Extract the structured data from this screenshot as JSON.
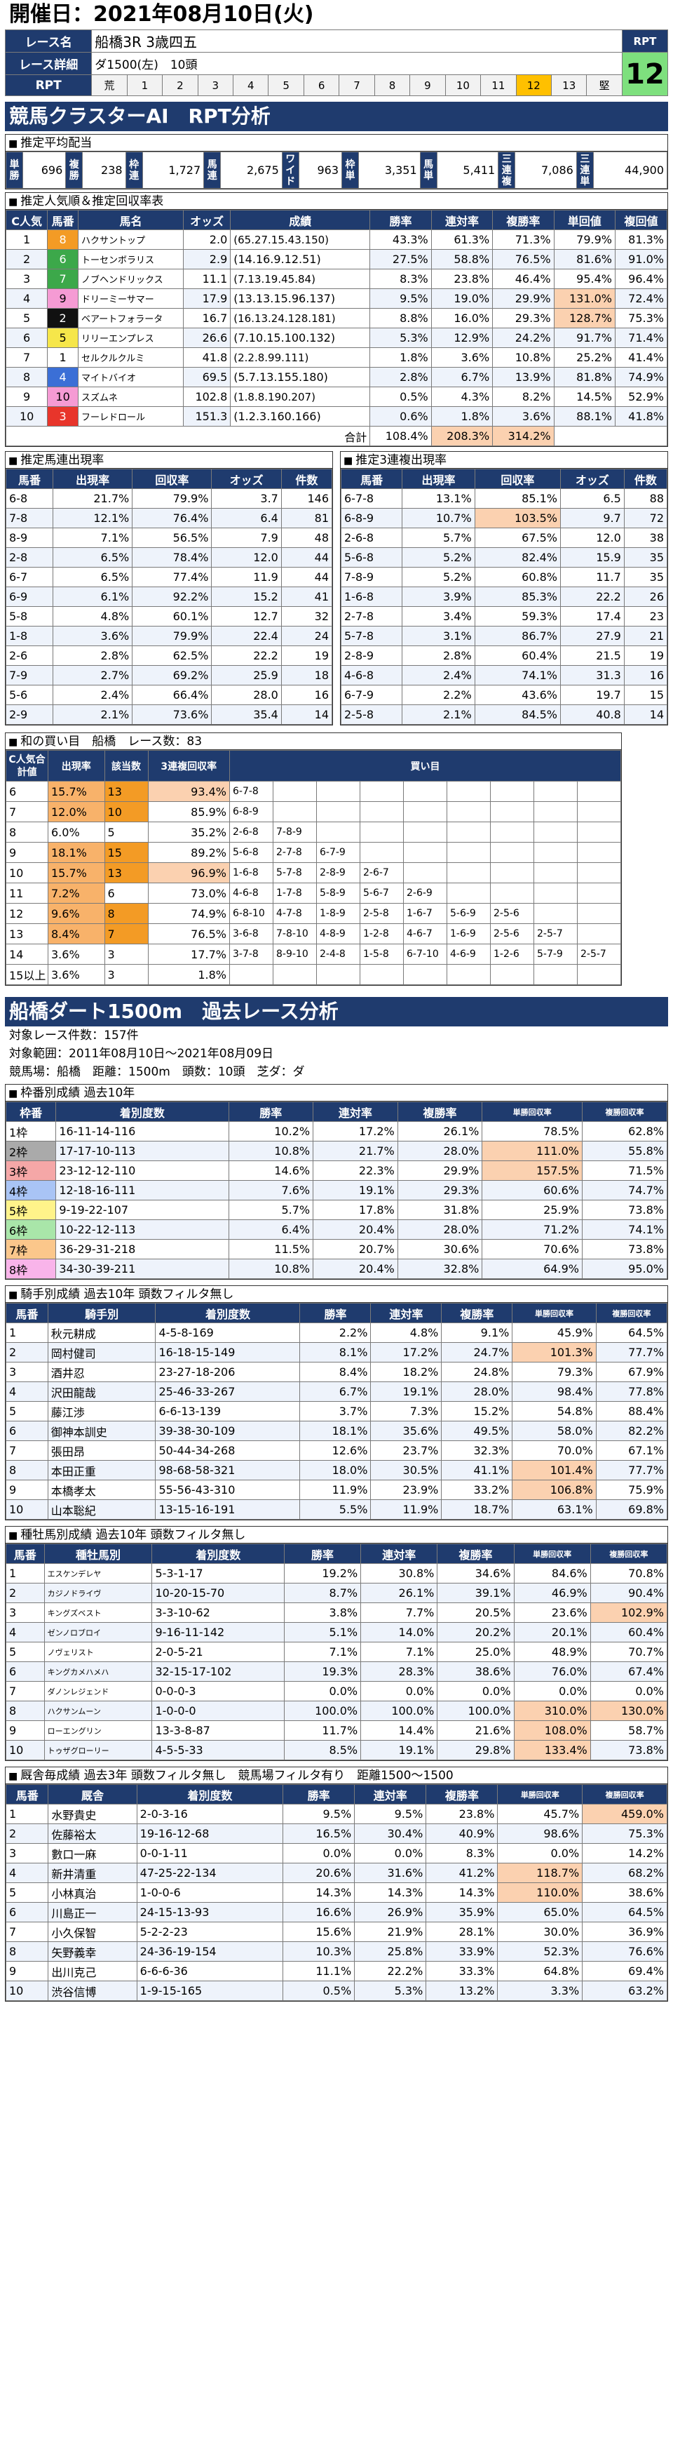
{
  "date": "開催日：2021年08月10日(火)",
  "race": {
    "name_label": "レース名",
    "name": "船橋3R 3歳四五",
    "detail_label": "レース詳細",
    "detail": "ダ1500(左)　10頭",
    "rpt_label": "RPT",
    "rpt_head": "RPT",
    "rpt_value": "12",
    "rpt_cells": [
      "荒",
      "1",
      "2",
      "3",
      "4",
      "5",
      "6",
      "7",
      "8",
      "9",
      "10",
      "11",
      "12",
      "13",
      "堅"
    ],
    "rpt_selected": 12
  },
  "banner1": "競馬クラスターAI　RPT分析",
  "haito": {
    "title": "推定平均配当",
    "items": [
      [
        "単勝",
        "696"
      ],
      [
        "複勝",
        "238"
      ],
      [
        "枠連",
        "1,727"
      ],
      [
        "馬連",
        "2,675"
      ],
      [
        "ワイド",
        "963"
      ],
      [
        "枠単",
        "3,351"
      ],
      [
        "馬単",
        "5,411"
      ],
      [
        "三連複",
        "7,086"
      ],
      [
        "三連単",
        "44,900"
      ]
    ]
  },
  "ninki": {
    "title": "推定人気順＆推定回収率表",
    "headers": [
      "C人気",
      "馬番",
      "馬名",
      "オッズ",
      "成績",
      "勝率",
      "連対率",
      "複勝率",
      "単回値",
      "複回値"
    ],
    "rows": [
      [
        "1",
        "8",
        "ハクサントップ",
        "2.0",
        "(65.27.15.43.150)",
        "43.3%",
        "61.3%",
        "71.3%",
        "79.9%",
        "81.3%"
      ],
      [
        "2",
        "6",
        "トーセンボラリス",
        "2.9",
        "(14.16.9.12.51)",
        "27.5%",
        "58.8%",
        "76.5%",
        "81.6%",
        "91.0%"
      ],
      [
        "3",
        "7",
        "ノブヘンドリックス",
        "11.1",
        "(7.13.19.45.84)",
        "8.3%",
        "23.8%",
        "46.4%",
        "95.4%",
        "96.4%"
      ],
      [
        "4",
        "9",
        "ドリーミーサマー",
        "17.9",
        "(13.13.15.96.137)",
        "9.5%",
        "19.0%",
        "29.9%",
        "131.0%",
        "72.4%"
      ],
      [
        "5",
        "2",
        "ベアートフォラータ",
        "16.7",
        "(16.13.24.128.181)",
        "8.8%",
        "16.0%",
        "29.3%",
        "128.7%",
        "75.3%"
      ],
      [
        "6",
        "5",
        "リリーエンプレス",
        "26.6",
        "(7.10.15.100.132)",
        "5.3%",
        "12.9%",
        "24.2%",
        "91.7%",
        "71.4%"
      ],
      [
        "7",
        "1",
        "セルクルクルミ",
        "41.8",
        "(2.2.8.99.111)",
        "1.8%",
        "3.6%",
        "10.8%",
        "25.2%",
        "41.4%"
      ],
      [
        "8",
        "4",
        "マイトバイオ",
        "69.5",
        "(5.7.13.155.180)",
        "2.8%",
        "6.7%",
        "13.9%",
        "81.8%",
        "74.9%"
      ],
      [
        "9",
        "10",
        "スズムネ",
        "102.8",
        "(1.8.8.190.207)",
        "0.5%",
        "4.3%",
        "8.2%",
        "14.5%",
        "52.9%"
      ],
      [
        "10",
        "3",
        "フーレドロール",
        "151.3",
        "(1.2.3.160.166)",
        "0.6%",
        "1.8%",
        "3.6%",
        "88.1%",
        "41.8%"
      ]
    ],
    "total": [
      "合計",
      "108.4%",
      "208.3%",
      "314.2%"
    ]
  },
  "umaban": {
    "title": "推定馬連出現率",
    "headers": [
      "馬番",
      "出現率",
      "回収率",
      "オッズ",
      "件数"
    ],
    "rows": [
      [
        "6-8",
        "21.7%",
        "79.9%",
        "3.7",
        "146"
      ],
      [
        "7-8",
        "12.1%",
        "76.4%",
        "6.4",
        "81"
      ],
      [
        "8-9",
        "7.1%",
        "56.5%",
        "7.9",
        "48"
      ],
      [
        "2-8",
        "6.5%",
        "78.4%",
        "12.0",
        "44"
      ],
      [
        "6-7",
        "6.5%",
        "77.4%",
        "11.9",
        "44"
      ],
      [
        "6-9",
        "6.1%",
        "92.2%",
        "15.2",
        "41"
      ],
      [
        "5-8",
        "4.8%",
        "60.1%",
        "12.7",
        "32"
      ],
      [
        "1-8",
        "3.6%",
        "79.9%",
        "22.4",
        "24"
      ],
      [
        "2-6",
        "2.8%",
        "62.5%",
        "22.2",
        "19"
      ],
      [
        "7-9",
        "2.7%",
        "69.2%",
        "25.9",
        "18"
      ],
      [
        "5-6",
        "2.4%",
        "66.4%",
        "28.0",
        "16"
      ],
      [
        "2-9",
        "2.1%",
        "73.6%",
        "35.4",
        "14"
      ]
    ]
  },
  "sanren": {
    "title": "推定3連複出現率",
    "headers": [
      "馬番",
      "出現率",
      "回収率",
      "オッズ",
      "件数"
    ],
    "rows": [
      [
        "6-7-8",
        "13.1%",
        "85.1%",
        "6.5",
        "88"
      ],
      [
        "6-8-9",
        "10.7%",
        "103.5%",
        "9.7",
        "72"
      ],
      [
        "2-6-8",
        "5.7%",
        "67.5%",
        "12.0",
        "38"
      ],
      [
        "5-6-8",
        "5.2%",
        "82.4%",
        "15.9",
        "35"
      ],
      [
        "7-8-9",
        "5.2%",
        "60.8%",
        "11.7",
        "35"
      ],
      [
        "1-6-8",
        "3.9%",
        "85.3%",
        "22.2",
        "26"
      ],
      [
        "2-7-8",
        "3.4%",
        "59.3%",
        "17.4",
        "23"
      ],
      [
        "5-7-8",
        "3.1%",
        "86.7%",
        "27.9",
        "21"
      ],
      [
        "2-8-9",
        "2.8%",
        "60.4%",
        "21.5",
        "19"
      ],
      [
        "4-6-8",
        "2.4%",
        "74.1%",
        "31.3",
        "16"
      ],
      [
        "6-7-9",
        "2.2%",
        "43.6%",
        "19.7",
        "15"
      ],
      [
        "2-5-8",
        "2.1%",
        "84.5%",
        "40.8",
        "14"
      ]
    ]
  },
  "wa": {
    "title": "和の買い目　船橋　レース数：83",
    "headers": [
      "C人気合計値",
      "出現率",
      "該当数",
      "3連複回収率",
      "買い目"
    ],
    "rows": [
      [
        "6",
        "15.7%",
        "13",
        "93.4%",
        [
          "6-7-8"
        ]
      ],
      [
        "7",
        "12.0%",
        "10",
        "85.9%",
        [
          "6-8-9"
        ]
      ],
      [
        "8",
        "6.0%",
        "5",
        "35.2%",
        [
          "2-6-8",
          "7-8-9"
        ]
      ],
      [
        "9",
        "18.1%",
        "15",
        "89.2%",
        [
          "5-6-8",
          "2-7-8",
          "6-7-9"
        ]
      ],
      [
        "10",
        "15.7%",
        "13",
        "96.9%",
        [
          "1-6-8",
          "5-7-8",
          "2-8-9",
          "2-6-7"
        ]
      ],
      [
        "11",
        "7.2%",
        "6",
        "73.0%",
        [
          "4-6-8",
          "1-7-8",
          "5-8-9",
          "5-6-7",
          "2-6-9"
        ]
      ],
      [
        "12",
        "9.6%",
        "8",
        "74.9%",
        [
          "6-8-10",
          "4-7-8",
          "1-8-9",
          "2-5-8",
          "1-6-7",
          "5-6-9",
          "2-5-6"
        ]
      ],
      [
        "13",
        "8.4%",
        "7",
        "76.5%",
        [
          "3-6-8",
          "7-8-10",
          "4-8-9",
          "1-2-8",
          "4-6-7",
          "1-6-9",
          "2-5-6",
          "2-5-7"
        ]
      ],
      [
        "14",
        "3.6%",
        "3",
        "17.7%",
        [
          "3-7-8",
          "8-9-10",
          "2-4-8",
          "1-5-8",
          "6-7-10",
          "4-6-9",
          "1-2-6",
          "5-7-9",
          "2-5-7"
        ]
      ],
      [
        "15以上",
        "3.6%",
        "3",
        "1.8%",
        []
      ]
    ]
  },
  "banner2": "船橋ダート1500m　過去レース分析",
  "meta": {
    "line1": "対象レース件数：157件",
    "line2": "対象範囲：2011年08月10日～2021年08月09日",
    "line3": "競馬場：船橋　距離：1500m　頭数：10頭　芝ダ：ダ"
  },
  "waku": {
    "title": "枠番別成績 過去10年",
    "headers": [
      "枠番",
      "着別度数",
      "勝率",
      "連対率",
      "複勝率",
      "単勝回収率",
      "複勝回収率"
    ],
    "rows": [
      [
        "1枠",
        "16-11-14-116",
        "10.2%",
        "17.2%",
        "26.1%",
        "78.5%",
        "62.8%"
      ],
      [
        "2枠",
        "17-17-10-113",
        "10.8%",
        "21.7%",
        "28.0%",
        "111.0%",
        "55.8%"
      ],
      [
        "3枠",
        "23-12-12-110",
        "14.6%",
        "22.3%",
        "29.9%",
        "157.5%",
        "71.5%"
      ],
      [
        "4枠",
        "12-18-16-111",
        "7.6%",
        "19.1%",
        "29.3%",
        "60.6%",
        "74.7%"
      ],
      [
        "5枠",
        "9-19-22-107",
        "5.7%",
        "17.8%",
        "31.8%",
        "25.9%",
        "73.8%"
      ],
      [
        "6枠",
        "10-22-12-113",
        "6.4%",
        "20.4%",
        "28.0%",
        "71.2%",
        "74.1%"
      ],
      [
        "7枠",
        "36-29-31-218",
        "11.5%",
        "20.7%",
        "30.6%",
        "70.6%",
        "73.8%"
      ],
      [
        "8枠",
        "34-30-39-211",
        "10.8%",
        "20.4%",
        "32.8%",
        "64.9%",
        "95.0%"
      ]
    ]
  },
  "kishu": {
    "title": "騎手別成績 過去10年 頭数フィルタ無し",
    "headers": [
      "馬番",
      "騎手別",
      "着別度数",
      "勝率",
      "連対率",
      "複勝率",
      "単勝回収率",
      "複勝回収率"
    ],
    "rows": [
      [
        "1",
        "秋元耕成",
        "4-5-8-169",
        "2.2%",
        "4.8%",
        "9.1%",
        "45.9%",
        "64.5%"
      ],
      [
        "2",
        "岡村健司",
        "16-18-15-149",
        "8.1%",
        "17.2%",
        "24.7%",
        "101.3%",
        "77.7%"
      ],
      [
        "3",
        "酒井忍",
        "23-27-18-206",
        "8.4%",
        "18.2%",
        "24.8%",
        "79.3%",
        "67.9%"
      ],
      [
        "4",
        "沢田龍哉",
        "25-46-33-267",
        "6.7%",
        "19.1%",
        "28.0%",
        "98.4%",
        "77.8%"
      ],
      [
        "5",
        "藤江渉",
        "6-6-13-139",
        "3.7%",
        "7.3%",
        "15.2%",
        "54.8%",
        "88.4%"
      ],
      [
        "6",
        "御神本訓史",
        "39-38-30-109",
        "18.1%",
        "35.6%",
        "49.5%",
        "58.0%",
        "82.2%"
      ],
      [
        "7",
        "張田昂",
        "50-44-34-268",
        "12.6%",
        "23.7%",
        "32.3%",
        "70.0%",
        "67.1%"
      ],
      [
        "8",
        "本田正重",
        "98-68-58-321",
        "18.0%",
        "30.5%",
        "41.1%",
        "101.4%",
        "77.7%"
      ],
      [
        "9",
        "本橋孝太",
        "55-56-43-310",
        "11.9%",
        "23.9%",
        "33.2%",
        "106.8%",
        "75.9%"
      ],
      [
        "10",
        "山本聡紀",
        "13-15-16-191",
        "5.5%",
        "11.9%",
        "18.7%",
        "63.1%",
        "69.8%"
      ]
    ]
  },
  "shubo": {
    "title": "種牡馬別成績 過去10年 頭数フィルタ無し",
    "headers": [
      "馬番",
      "種牡馬別",
      "着別度数",
      "勝率",
      "連対率",
      "複勝率",
      "単勝回収率",
      "複勝回収率"
    ],
    "rows": [
      [
        "1",
        "エスケンデレヤ",
        "5-3-1-17",
        "19.2%",
        "30.8%",
        "34.6%",
        "84.6%",
        "70.8%"
      ],
      [
        "2",
        "カジノドライヴ",
        "10-20-15-70",
        "8.7%",
        "26.1%",
        "39.1%",
        "46.9%",
        "90.4%"
      ],
      [
        "3",
        "キングズベスト",
        "3-3-10-62",
        "3.8%",
        "7.7%",
        "20.5%",
        "23.6%",
        "102.9%"
      ],
      [
        "4",
        "ゼンノロブロイ",
        "9-16-11-142",
        "5.1%",
        "14.0%",
        "20.2%",
        "20.1%",
        "60.4%"
      ],
      [
        "5",
        "ノヴェリスト",
        "2-0-5-21",
        "7.1%",
        "7.1%",
        "25.0%",
        "48.9%",
        "70.7%"
      ],
      [
        "6",
        "キングカメハメハ",
        "32-15-17-102",
        "19.3%",
        "28.3%",
        "38.6%",
        "76.0%",
        "67.4%"
      ],
      [
        "7",
        "ダノンレジェンド",
        "0-0-0-3",
        "0.0%",
        "0.0%",
        "0.0%",
        "0.0%",
        "0.0%"
      ],
      [
        "8",
        "ハクサンムーン",
        "1-0-0-0",
        "100.0%",
        "100.0%",
        "100.0%",
        "310.0%",
        "130.0%"
      ],
      [
        "9",
        "ローエングリン",
        "13-3-8-87",
        "11.7%",
        "14.4%",
        "21.6%",
        "108.0%",
        "58.7%"
      ],
      [
        "10",
        "トゥザグローリー",
        "4-5-5-33",
        "8.5%",
        "19.1%",
        "29.8%",
        "133.4%",
        "73.8%"
      ]
    ]
  },
  "kyusha": {
    "title": "厩舎毎成績 過去3年 頭数フィルタ無し　競馬場フィルタ有り　距離1500～1500",
    "headers": [
      "馬番",
      "厩舎",
      "着別度数",
      "勝率",
      "連対率",
      "複勝率",
      "単勝回収率",
      "複勝回収率"
    ],
    "rows": [
      [
        "1",
        "水野貴史",
        "2-0-3-16",
        "9.5%",
        "9.5%",
        "23.8%",
        "45.7%",
        "459.0%"
      ],
      [
        "2",
        "佐藤裕太",
        "19-16-12-68",
        "16.5%",
        "30.4%",
        "40.9%",
        "98.6%",
        "75.3%"
      ],
      [
        "3",
        "數口一麻",
        "0-0-1-11",
        "0.0%",
        "0.0%",
        "8.3%",
        "0.0%",
        "14.2%"
      ],
      [
        "4",
        "新井清重",
        "47-25-22-134",
        "20.6%",
        "31.6%",
        "41.2%",
        "118.7%",
        "68.2%"
      ],
      [
        "5",
        "小林真治",
        "1-0-0-6",
        "14.3%",
        "14.3%",
        "14.3%",
        "110.0%",
        "38.6%"
      ],
      [
        "6",
        "川島正一",
        "24-15-13-93",
        "16.6%",
        "26.9%",
        "35.9%",
        "65.0%",
        "64.5%"
      ],
      [
        "7",
        "小久保智",
        "5-2-2-23",
        "15.6%",
        "21.9%",
        "28.1%",
        "30.0%",
        "36.9%"
      ],
      [
        "8",
        "矢野義幸",
        "24-36-19-154",
        "10.3%",
        "25.8%",
        "33.9%",
        "52.3%",
        "76.6%"
      ],
      [
        "9",
        "出川克己",
        "6-6-6-36",
        "11.1%",
        "22.2%",
        "33.3%",
        "64.8%",
        "69.4%"
      ],
      [
        "10",
        "渋谷信博",
        "1-9-15-165",
        "0.5%",
        "5.3%",
        "13.2%",
        "3.3%",
        "63.2%"
      ]
    ]
  },
  "colors": {
    "header": "#1f3b6e",
    "highlight": "#fbd1b0",
    "rpt_green": "#7ee07e"
  }
}
